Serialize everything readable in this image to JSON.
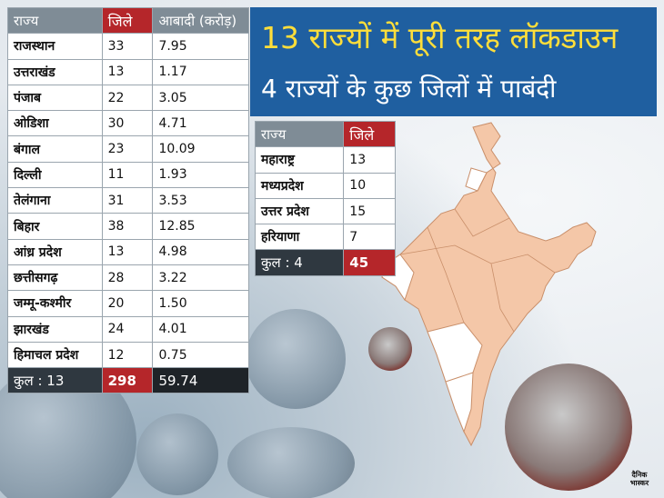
{
  "heading": {
    "line1": "13 राज्यों में पूरी तरह लॉकडाउन",
    "line2": "4 राज्यों के कुछ जिलों में पाबंदी"
  },
  "full_lockdown_table": {
    "headers": {
      "state": "राज्य",
      "districts": "जिले",
      "population": "आबादी (करोड़)"
    },
    "rows": [
      {
        "state": "राजस्थान",
        "districts": "33",
        "population": "7.95"
      },
      {
        "state": "उत्तराखंड",
        "districts": "13",
        "population": "1.17"
      },
      {
        "state": "पंजाब",
        "districts": "22",
        "population": "3.05"
      },
      {
        "state": "ओडिशा",
        "districts": "30",
        "population": "4.71"
      },
      {
        "state": "बंगाल",
        "districts": "23",
        "population": "10.09"
      },
      {
        "state": "दिल्ली",
        "districts": "11",
        "population": "1.93"
      },
      {
        "state": "तेलंगाना",
        "districts": "31",
        "population": "3.53"
      },
      {
        "state": "बिहार",
        "districts": "38",
        "population": "12.85"
      },
      {
        "state": "आंध्र प्रदेश",
        "districts": "13",
        "population": "4.98"
      },
      {
        "state": "छत्तीसगढ़",
        "districts": "28",
        "population": "3.22"
      },
      {
        "state": "जम्मू-कश्मीर",
        "districts": "20",
        "population": "1.50"
      },
      {
        "state": "झारखंड",
        "districts": "24",
        "population": "4.01"
      },
      {
        "state": "हिमाचल प्रदेश",
        "districts": "12",
        "population": "0.75"
      }
    ],
    "total": {
      "label": "कुल : 13",
      "districts": "298",
      "population": "59.74"
    }
  },
  "partial_table": {
    "headers": {
      "state": "राज्य",
      "districts": "जिले"
    },
    "rows": [
      {
        "state": "महाराष्ट्र",
        "districts": "13"
      },
      {
        "state": "मध्यप्रदेश",
        "districts": "10"
      },
      {
        "state": "उत्तर प्रदेश",
        "districts": "15"
      },
      {
        "state": "हरियाणा",
        "districts": "7"
      }
    ],
    "total": {
      "label": "कुल : 4",
      "districts": "45"
    }
  },
  "logo": {
    "line1": "दैनिक",
    "line2": "भास्कर"
  },
  "colors": {
    "accent_red": "#b5262a",
    "title_blue": "#1f5fa0",
    "title_yellow": "#ffde3a",
    "map_fill": "#f4c7a8"
  },
  "icons": {
    "map": "india-map-icon",
    "virus": "coronavirus-icon"
  }
}
